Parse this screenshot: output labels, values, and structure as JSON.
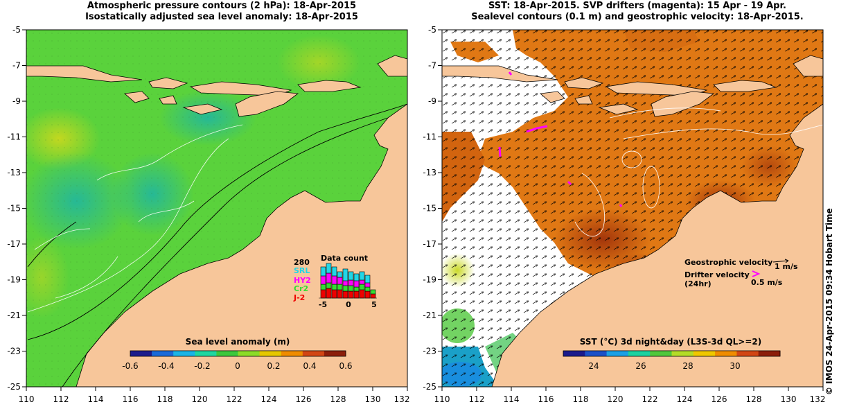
{
  "left_panel": {
    "title_line1": "Atmospheric pressure contours (2 hPa): 18-Apr-2015",
    "title_line2": "Isostatically adjusted sea level anomaly: 18-Apr-2015",
    "x_ticks": [
      "110",
      "112",
      "114",
      "116",
      "118",
      "120",
      "122",
      "124",
      "126",
      "128",
      "130",
      "132"
    ],
    "y_ticks": [
      "-5",
      "-7",
      "-9",
      "-11",
      "-13",
      "-15",
      "-17",
      "-19",
      "-21",
      "-23",
      "-25"
    ],
    "colorbar": {
      "label": "Sea level anomaly (m)",
      "ticks": [
        "-0.6",
        "-0.4",
        "-0.2",
        "0",
        "0.2",
        "0.4",
        "0.6"
      ],
      "colors": [
        "#1c1c8c",
        "#1a6ad8",
        "#1ab4e6",
        "#1fd7a0",
        "#3cc83c",
        "#8cdc28",
        "#e6c800",
        "#f08c00",
        "#d24614",
        "#8c1e0a"
      ]
    },
    "data_count": {
      "title": "Data count",
      "max_label": "280",
      "satellites": [
        {
          "name": "SRL",
          "color": "#22d6e6"
        },
        {
          "name": "HY2",
          "color": "#ff00ff"
        },
        {
          "name": "Cr2",
          "color": "#33dd33"
        },
        {
          "name": "J-2",
          "color": "#ee0000"
        }
      ],
      "x_ticks": [
        "-5",
        "0",
        "5"
      ]
    }
  },
  "right_panel": {
    "title_line1": "SST: 18-Apr-2015. SVP drifters (magenta): 15 Apr - 19 Apr.",
    "title_line2": "Sealevel contours (0.1 m) and geostrophic velocity: 18-Apr-2015.",
    "x_ticks": [
      "110",
      "112",
      "114",
      "116",
      "118",
      "120",
      "122",
      "124",
      "126",
      "128",
      "130",
      "132"
    ],
    "y_ticks": [
      "-5",
      "-7",
      "-9",
      "-11",
      "-13",
      "-15",
      "-17",
      "-19",
      "-21",
      "-23",
      "-25"
    ],
    "colorbar": {
      "label": "SST (°C) 3d night&day (L3S-3d QL>=2)",
      "ticks": [
        "24",
        "26",
        "28",
        "30"
      ],
      "colors": [
        "#1a1a8c",
        "#1a50c8",
        "#1aa0e6",
        "#1ad2a0",
        "#50c83c",
        "#b4dc28",
        "#f0c800",
        "#f08c00",
        "#d24614",
        "#8c1e0a"
      ]
    },
    "geostrophic_label": "Geostrophic velocity",
    "geostrophic_scale": "1 m/s",
    "drifter_label_line1": "Drifter velocity",
    "drifter_label_line2": "(24hr)",
    "drifter_scale": "0.5 m/s"
  },
  "copyright": "© IMOS 24-Apr-2015 09:34 Hobart Time",
  "colors": {
    "land": "#f7c69a",
    "sea_green": "#5ad23c",
    "sst_orange": "#e07814",
    "sst_dark": "#b4460c",
    "drifter": "#ff00ff"
  }
}
